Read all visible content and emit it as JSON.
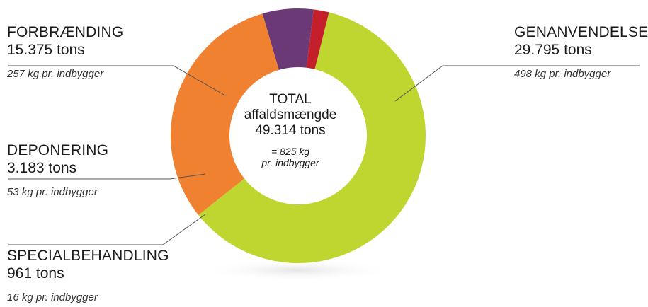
{
  "chart_data": {
    "type": "pie",
    "categories": [
      "GENANVENDELSE",
      "FORBRÆNDING",
      "DEPONERING",
      "SPECIALBEHANDLING"
    ],
    "values": [
      29795,
      15375,
      3183,
      961
    ],
    "unit": "tons",
    "colors": [
      "#bfd630",
      "#f08131",
      "#6b3a76",
      "#c41f2a"
    ],
    "labels": [
      {
        "name": "GENANVENDELSE",
        "tons": "29.795 tons",
        "per": "498 kg pr. indbygger"
      },
      {
        "name": "FORBRÆNDING",
        "tons": "15.375 tons",
        "per": "257 kg pr. indbygger"
      },
      {
        "name": "DEPONERING",
        "tons": "3.183 tons",
        "per": "53 kg pr. indbygger"
      },
      {
        "name": "SPECIALBEHANDLING",
        "tons": "961 tons",
        "per": "16 kg pr. indbygger"
      }
    ],
    "center": {
      "line1": "TOTAL",
      "line2": "affaldsmængde",
      "line3": "49.314 tons",
      "line4": "= 825 kg",
      "line5": "pr. indbygger"
    },
    "donut": true
  }
}
